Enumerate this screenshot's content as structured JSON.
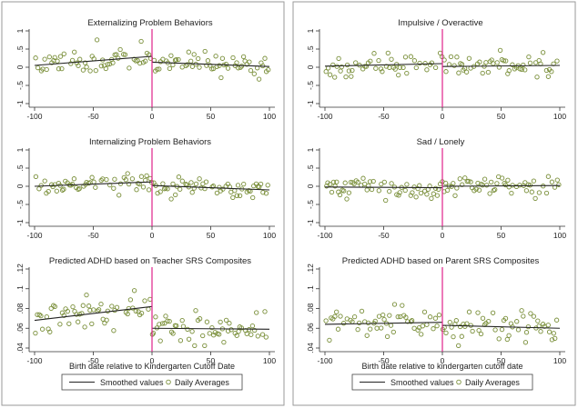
{
  "chart_data": [
    {
      "type": "scatter",
      "title": "Externalizing Problem Behaviors",
      "xlim": [
        -100,
        100
      ],
      "ylim": [
        -1,
        1
      ],
      "xticks": [
        -100,
        -50,
        0,
        50,
        100
      ],
      "yticks": [
        1,
        0.5,
        0,
        -0.5,
        -1
      ],
      "ytick_labels": [
        "1",
        ".5",
        "0",
        "-.5",
        "-1"
      ],
      "cutoff_x": 0,
      "seed": 11,
      "noise": 0.16,
      "fit_left": {
        "x": [
          -100,
          0
        ],
        "y": [
          0.05,
          0.3
        ]
      },
      "fit_right": {
        "x": [
          0,
          100
        ],
        "y": [
          0.14,
          0.02
        ]
      }
    },
    {
      "type": "scatter",
      "title": "Impulsive / Overactive",
      "xlim": [
        -100,
        100
      ],
      "ylim": [
        -1,
        1
      ],
      "xticks": [
        -100,
        -50,
        0,
        50,
        100
      ],
      "yticks": [
        1,
        0.5,
        0,
        -0.5,
        -1
      ],
      "ytick_labels": [
        "1",
        ".5",
        "0",
        "-.5",
        "-1"
      ],
      "cutoff_x": 0,
      "seed": 23,
      "noise": 0.14,
      "fit_left": {
        "x": [
          -100,
          0
        ],
        "y": [
          0.03,
          0.1
        ]
      },
      "fit_right": {
        "x": [
          0,
          100
        ],
        "y": [
          0.02,
          0.05
        ]
      }
    },
    {
      "type": "scatter",
      "title": "Internalizing Problem Behaviors",
      "xlim": [
        -100,
        100
      ],
      "ylim": [
        -1,
        1
      ],
      "xticks": [
        -100,
        -50,
        0,
        50,
        100
      ],
      "yticks": [
        1,
        0.5,
        0,
        -0.5,
        -1
      ],
      "ytick_labels": [
        "1",
        ".5",
        "0",
        "-.5",
        "-1"
      ],
      "cutoff_x": 0,
      "seed": 37,
      "noise": 0.14,
      "fit_left": {
        "x": [
          -100,
          0
        ],
        "y": [
          0.0,
          0.12
        ]
      },
      "fit_right": {
        "x": [
          0,
          100
        ],
        "y": [
          0.02,
          -0.1
        ]
      }
    },
    {
      "type": "scatter",
      "title": "Sad / Lonely",
      "xlim": [
        -100,
        100
      ],
      "ylim": [
        -1,
        1
      ],
      "xticks": [
        -100,
        -50,
        0,
        50,
        100
      ],
      "yticks": [
        1,
        0.5,
        0,
        -0.5,
        -1
      ],
      "ytick_labels": [
        "1",
        ".5",
        "0",
        "-.5",
        "-1"
      ],
      "cutoff_x": 0,
      "seed": 41,
      "noise": 0.14,
      "fit_left": {
        "x": [
          -100,
          0
        ],
        "y": [
          -0.02,
          -0.04
        ]
      },
      "fit_right": {
        "x": [
          0,
          100
        ],
        "y": [
          0.0,
          0.02
        ]
      }
    },
    {
      "type": "scatter",
      "title": "Predicted ADHD based on Teacher SRS Composites",
      "xlim": [
        -100,
        100
      ],
      "ylim": [
        0.04,
        0.12
      ],
      "xticks": [
        -100,
        -50,
        0,
        50,
        100
      ],
      "yticks": [
        0.04,
        0.06,
        0.08,
        0.1,
        0.12
      ],
      "ytick_labels": [
        ".04",
        ".06",
        ".08",
        ".1",
        ".12"
      ],
      "cutoff_x": 0,
      "xlabel": "Birth date relative to Kindergarten Cutoff Date",
      "seed": 53,
      "noise": 0.009,
      "fit_left": {
        "x": [
          -100,
          0
        ],
        "y": [
          0.068,
          0.082
        ]
      },
      "fit_right": {
        "x": [
          0,
          100
        ],
        "y": [
          0.06,
          0.059
        ]
      }
    },
    {
      "type": "scatter",
      "title": "Predicted ADHD based on Parent SRS Composites",
      "xlim": [
        -100,
        100
      ],
      "ylim": [
        0.04,
        0.12
      ],
      "xticks": [
        -100,
        -50,
        0,
        50,
        100
      ],
      "yticks": [
        0.04,
        0.06,
        0.08,
        0.1,
        0.12
      ],
      "ytick_labels": [
        ".04",
        ".06",
        ".08",
        ".1",
        ".12"
      ],
      "cutoff_x": 0,
      "xlabel": "Birth date relative to kindergarten cutoff date",
      "seed": 67,
      "noise": 0.007,
      "fit_left": {
        "x": [
          -100,
          0
        ],
        "y": [
          0.064,
          0.066
        ]
      },
      "fit_right": {
        "x": [
          0,
          100
        ],
        "y": [
          0.063,
          0.06
        ]
      }
    }
  ],
  "legend": {
    "smoothed_label": "Smoothed values",
    "daily_label": "Daily Averages"
  },
  "colors": {
    "marker": "#7a8f3a",
    "cutoff": "#e0218a",
    "trend": "#222222"
  }
}
